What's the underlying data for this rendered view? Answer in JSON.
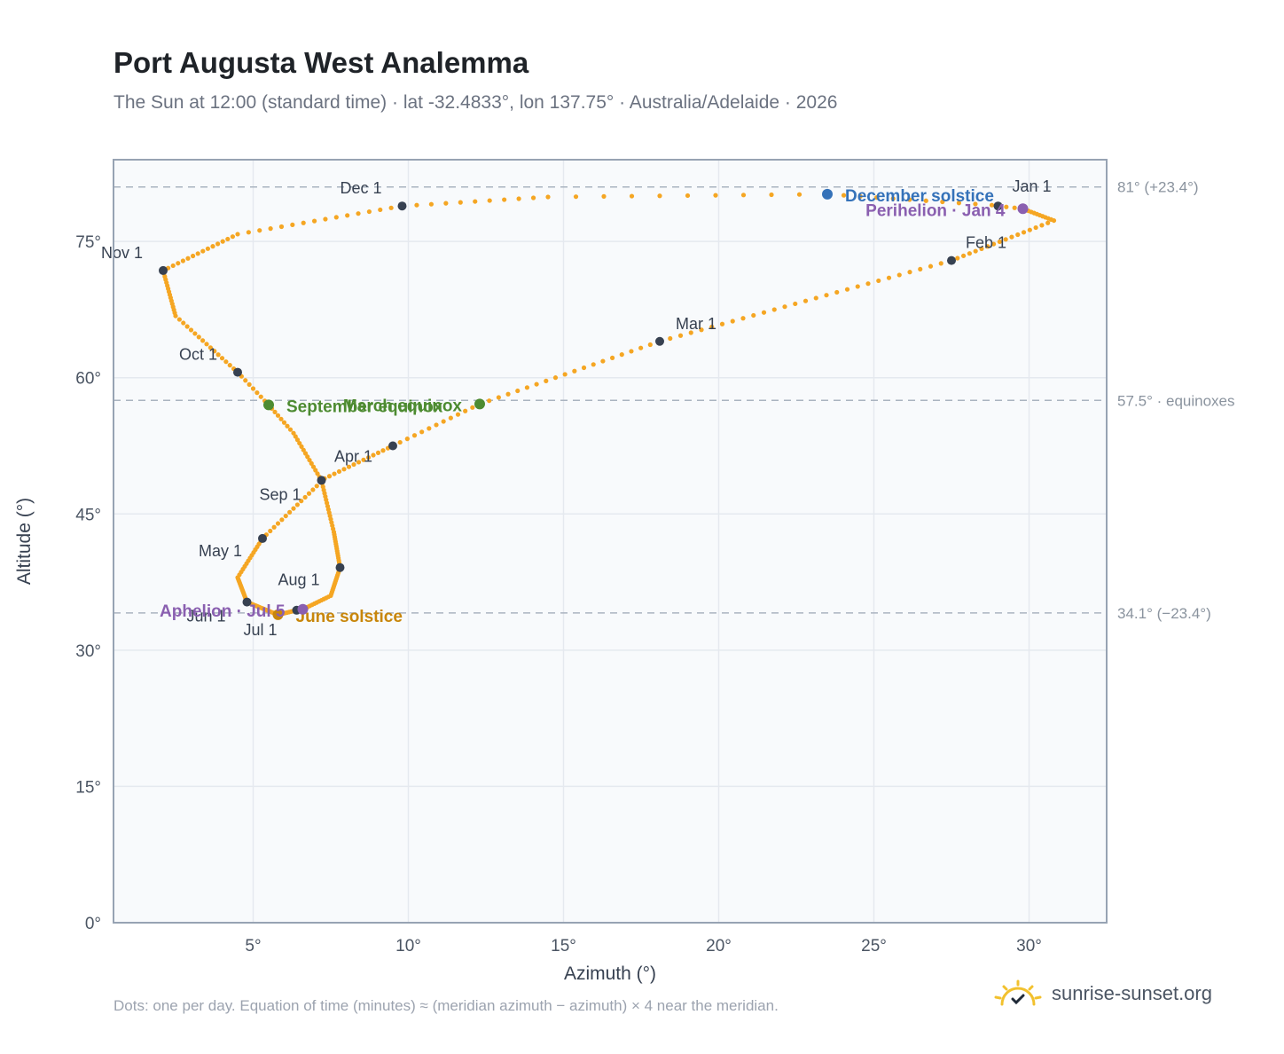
{
  "header": {
    "title": "Port Augusta West Analemma",
    "subtitle": "The Sun at 12:00 (standard time) · lat -32.4833°, lon 137.75° · Australia/Adelaide · 2026"
  },
  "footer": {
    "note": "Dots: one per day. Equation of time (minutes) ≈ (meridian azimuth − azimuth) × 4 near the meridian.",
    "brand": "sunrise-sunset.org"
  },
  "colors": {
    "path": "#f5a623",
    "month_marker": "#374151",
    "equinox": "#4d8b31",
    "june_solstice": "#c8860a",
    "december_solstice": "#3572b9",
    "apsis": "#8a5fb0",
    "reference_line": "#aab4c0",
    "plot_bg": "#f8fafc",
    "grid": "#e5e9ef"
  },
  "chart_data": {
    "type": "scatter",
    "xlabel": "Azimuth (°)",
    "ylabel": "Altitude (°)",
    "xlim": [
      0.5,
      32.5
    ],
    "ylim": [
      0,
      84
    ],
    "xticks": [
      5,
      10,
      15,
      20,
      25,
      30
    ],
    "xtick_labels": [
      "5°",
      "10°",
      "15°",
      "20°",
      "25°",
      "30°"
    ],
    "yticks": [
      0,
      15,
      30,
      45,
      60,
      75
    ],
    "ytick_labels": [
      "0°",
      "15°",
      "30°",
      "45°",
      "60°",
      "75°"
    ],
    "grid": true,
    "path_anchors": [
      {
        "day": 1,
        "x": 29.0,
        "y": 78.9
      },
      {
        "day": 4,
        "x": 29.8,
        "y": 78.6
      },
      {
        "day": 15,
        "x": 30.8,
        "y": 77.3
      },
      {
        "day": 32,
        "x": 27.5,
        "y": 72.9
      },
      {
        "day": 60,
        "x": 18.1,
        "y": 64.0
      },
      {
        "day": 79,
        "x": 12.3,
        "y": 57.1
      },
      {
        "day": 91,
        "x": 9.5,
        "y": 52.5
      },
      {
        "day": 105,
        "x": 7.3,
        "y": 48.9
      },
      {
        "day": 121,
        "x": 5.3,
        "y": 42.3
      },
      {
        "day": 135,
        "x": 4.5,
        "y": 38.0
      },
      {
        "day": 152,
        "x": 4.8,
        "y": 35.3
      },
      {
        "day": 172,
        "x": 5.8,
        "y": 33.9
      },
      {
        "day": 182,
        "x": 6.4,
        "y": 34.4
      },
      {
        "day": 186,
        "x": 6.6,
        "y": 34.5
      },
      {
        "day": 198,
        "x": 7.5,
        "y": 36.0
      },
      {
        "day": 213,
        "x": 7.8,
        "y": 39.1
      },
      {
        "day": 228,
        "x": 7.6,
        "y": 43.0
      },
      {
        "day": 244,
        "x": 7.2,
        "y": 48.7
      },
      {
        "day": 258,
        "x": 6.3,
        "y": 53.9
      },
      {
        "day": 266,
        "x": 5.5,
        "y": 57.0
      },
      {
        "day": 274,
        "x": 4.5,
        "y": 60.6
      },
      {
        "day": 290,
        "x": 2.5,
        "y": 66.8
      },
      {
        "day": 305,
        "x": 2.1,
        "y": 71.8
      },
      {
        "day": 320,
        "x": 4.5,
        "y": 75.8
      },
      {
        "day": 335,
        "x": 9.8,
        "y": 78.9
      },
      {
        "day": 345,
        "x": 14.5,
        "y": 79.9
      },
      {
        "day": 355,
        "x": 23.5,
        "y": 80.2
      },
      {
        "day": 365,
        "x": 28.8,
        "y": 79.0
      }
    ],
    "month_markers": [
      {
        "label": "Jan 1",
        "x": 29.0,
        "y": 78.9
      },
      {
        "label": "Feb 1",
        "x": 27.5,
        "y": 72.9
      },
      {
        "label": "Mar 1",
        "x": 18.1,
        "y": 64.0
      },
      {
        "label": "Apr 1",
        "x": 9.5,
        "y": 52.5
      },
      {
        "label": "May 1",
        "x": 5.3,
        "y": 42.3
      },
      {
        "label": "Jun 1",
        "x": 4.8,
        "y": 35.3
      },
      {
        "label": "Jul 1",
        "x": 6.4,
        "y": 34.4
      },
      {
        "label": "Aug 1",
        "x": 7.8,
        "y": 39.1
      },
      {
        "label": "Sep 1",
        "x": 7.2,
        "y": 48.7
      },
      {
        "label": "Oct 1",
        "x": 4.5,
        "y": 60.6
      },
      {
        "label": "Nov 1",
        "x": 2.1,
        "y": 71.8
      },
      {
        "label": "Dec 1",
        "x": 9.8,
        "y": 78.9
      }
    ],
    "events": [
      {
        "label": "December solstice",
        "x": 23.5,
        "y": 80.2,
        "color": "#3572b9"
      },
      {
        "label": "Perihelion · Jan 4",
        "x": 29.8,
        "y": 78.6,
        "color": "#8a5fb0"
      },
      {
        "label": "March equinox",
        "x": 12.3,
        "y": 57.1,
        "color": "#4d8b31"
      },
      {
        "label": "September equinox",
        "x": 5.5,
        "y": 57.0,
        "color": "#4d8b31"
      },
      {
        "label": "June solstice",
        "x": 5.8,
        "y": 33.9,
        "color": "#c8860a"
      },
      {
        "label": "Aphelion · Jul 5",
        "x": 6.6,
        "y": 34.5,
        "color": "#8a5fb0"
      }
    ],
    "reference_lines": [
      {
        "y": 81.0,
        "label": "81° (+23.4°)"
      },
      {
        "y": 57.5,
        "label": "57.5° · equinoxes"
      },
      {
        "y": 34.1,
        "label": "34.1° (−23.4°)"
      }
    ]
  }
}
